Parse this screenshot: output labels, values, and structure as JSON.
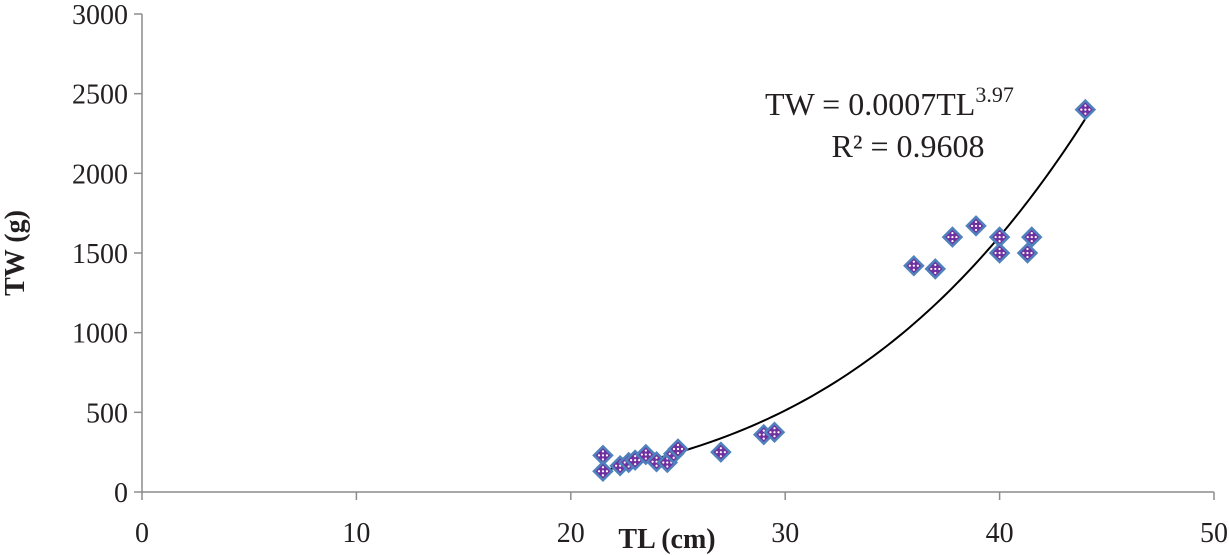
{
  "chart_data": {
    "type": "scatter",
    "xlabel": "TL (cm)",
    "ylabel": "TW (g)",
    "xlim": [
      0,
      50
    ],
    "ylim": [
      0,
      3000
    ],
    "x_ticks": [
      "0",
      "10",
      "20",
      "30",
      "40",
      "50"
    ],
    "y_ticks": [
      "0",
      "500",
      "1000",
      "1500",
      "2000",
      "2500",
      "3000"
    ],
    "grid": false,
    "legend": "none",
    "points": [
      {
        "x": 21.5,
        "y": 230
      },
      {
        "x": 21.5,
        "y": 130
      },
      {
        "x": 22.3,
        "y": 165
      },
      {
        "x": 22.7,
        "y": 185
      },
      {
        "x": 23.0,
        "y": 200
      },
      {
        "x": 23.5,
        "y": 235
      },
      {
        "x": 24.0,
        "y": 190
      },
      {
        "x": 24.5,
        "y": 185
      },
      {
        "x": 24.8,
        "y": 240
      },
      {
        "x": 25.0,
        "y": 270
      },
      {
        "x": 27.0,
        "y": 250
      },
      {
        "x": 29.0,
        "y": 360
      },
      {
        "x": 29.5,
        "y": 375
      },
      {
        "x": 36.0,
        "y": 1420
      },
      {
        "x": 37.0,
        "y": 1400
      },
      {
        "x": 37.8,
        "y": 1600
      },
      {
        "x": 38.9,
        "y": 1670
      },
      {
        "x": 40.0,
        "y": 1600
      },
      {
        "x": 40.0,
        "y": 1500
      },
      {
        "x": 41.3,
        "y": 1500
      },
      {
        "x": 41.5,
        "y": 1600
      },
      {
        "x": 44.0,
        "y": 2400
      }
    ],
    "trendline": {
      "type": "power",
      "coefficient": 0.0007,
      "exponent": 3.97,
      "x_range": [
        21.5,
        44.0
      ]
    },
    "annotations": {
      "equation_main": "TW = 0.0007TL",
      "equation_exponent": "3.97",
      "r_squared": "R² = 0.9608"
    },
    "colors": {
      "marker_fill": "#7030a0",
      "marker_stroke": "#4f81bd",
      "marker_dot": "#ffffff",
      "axis": "#8c8c8c",
      "trendline": "#000000",
      "text": "#231f20"
    }
  }
}
